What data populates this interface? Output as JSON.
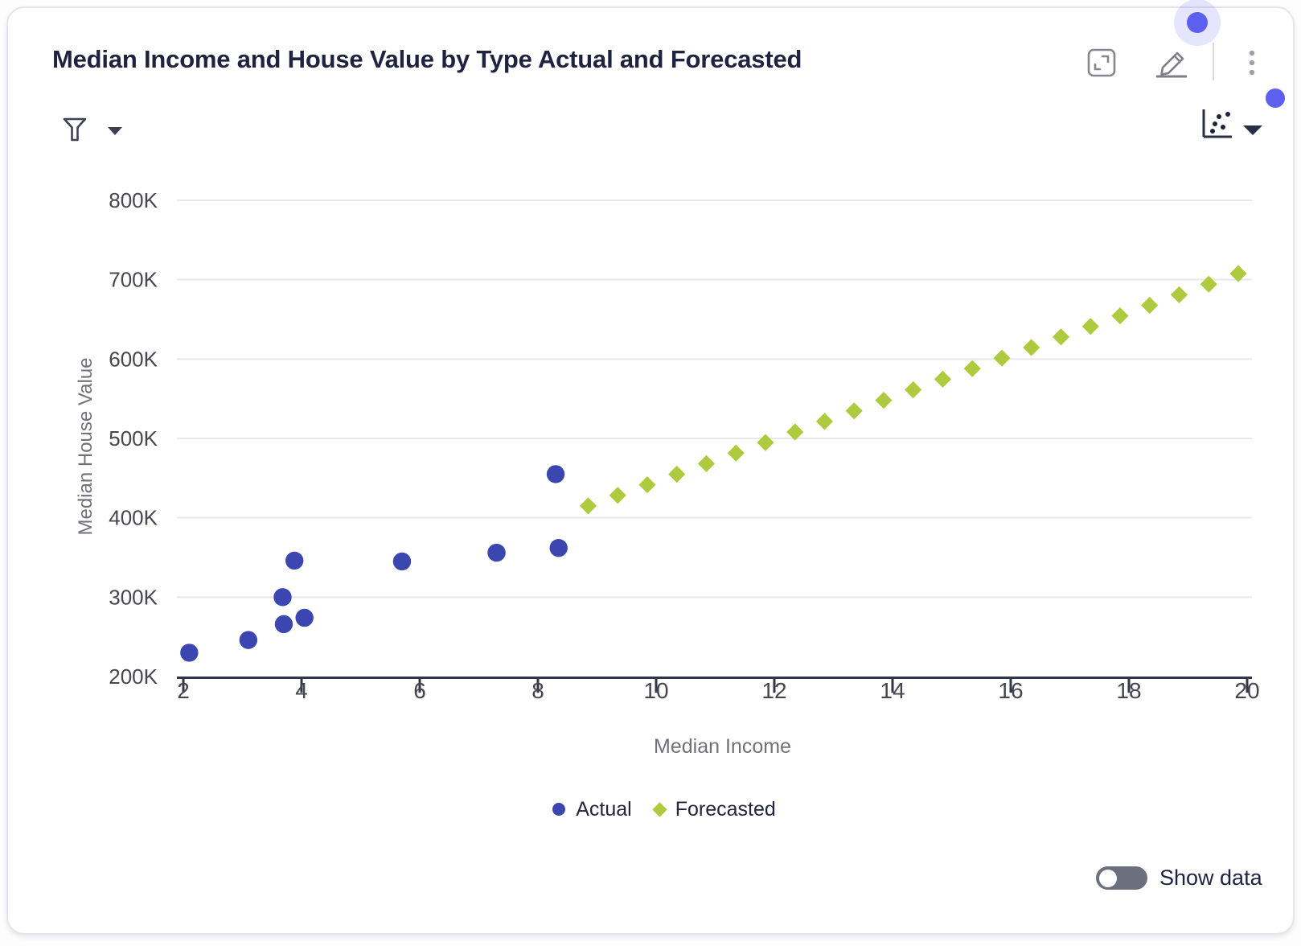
{
  "card": {
    "title": "Median Income and House Value by Type Actual and Forecasted"
  },
  "toolbar": {
    "icons": [
      "expand-icon",
      "edit-icon",
      "overflow-menu-icon"
    ]
  },
  "filter_bar": {
    "icon": "filter-funnel-icon",
    "caret": "chevron-down-icon"
  },
  "chart_type_selector": {
    "icon": "scatter-chart-icon",
    "caret": "chevron-down-icon"
  },
  "footer": {
    "show_data_label": "Show data",
    "toggle_state": "off"
  },
  "colors": {
    "actual_blue": "#3B46B1",
    "forecast_green": "#AECB40",
    "pointer_dot": "#5D5FEF",
    "title_text": "#1F2340",
    "axis_text": "#46464F",
    "axis_title_text": "#70707A",
    "gridline": "#E8E8EB",
    "axis_line": "#32364A",
    "toggle_off": "#6B6F7E"
  },
  "chart_data": {
    "type": "scatter",
    "title": "Median Income and House Value by Type Actual and Forecasted",
    "xlabel": "Median Income",
    "ylabel": "Median House Value",
    "xlim": [
      2,
      20
    ],
    "ylim": [
      200000,
      800000
    ],
    "x_ticks": [
      2,
      4,
      6,
      8,
      10,
      12,
      14,
      16,
      18,
      20
    ],
    "y_ticks": [
      200000,
      300000,
      400000,
      500000,
      600000,
      700000,
      800000
    ],
    "y_tick_format": "K",
    "grid": "horizontal",
    "legend_position": "bottom",
    "series": [
      {
        "name": "Actual",
        "marker": "circle",
        "color": "#3B46B1",
        "points": [
          [
            2.1,
            230000
          ],
          [
            3.1,
            246000
          ],
          [
            3.7,
            266000
          ],
          [
            4.05,
            274000
          ],
          [
            3.68,
            300000
          ],
          [
            3.88,
            346000
          ],
          [
            5.7,
            345000
          ],
          [
            7.3,
            356000
          ],
          [
            8.35,
            362000
          ],
          [
            8.3,
            455000
          ]
        ]
      },
      {
        "name": "Forecasted",
        "marker": "diamond",
        "color": "#AECB40",
        "points": [
          [
            8.85,
            415000
          ],
          [
            9.35,
            428300
          ],
          [
            9.85,
            441600
          ],
          [
            10.35,
            454900
          ],
          [
            10.85,
            468200
          ],
          [
            11.35,
            481500
          ],
          [
            11.85,
            494800
          ],
          [
            12.35,
            508100
          ],
          [
            12.85,
            521400
          ],
          [
            13.35,
            534700
          ],
          [
            13.85,
            548000
          ],
          [
            14.35,
            561300
          ],
          [
            14.85,
            574600
          ],
          [
            15.35,
            587900
          ],
          [
            15.85,
            601200
          ],
          [
            16.35,
            614500
          ],
          [
            16.85,
            627800
          ],
          [
            17.35,
            641100
          ],
          [
            17.85,
            654400
          ],
          [
            18.35,
            667700
          ],
          [
            18.85,
            681000
          ],
          [
            19.35,
            694300
          ],
          [
            19.85,
            707600
          ]
        ]
      }
    ]
  }
}
